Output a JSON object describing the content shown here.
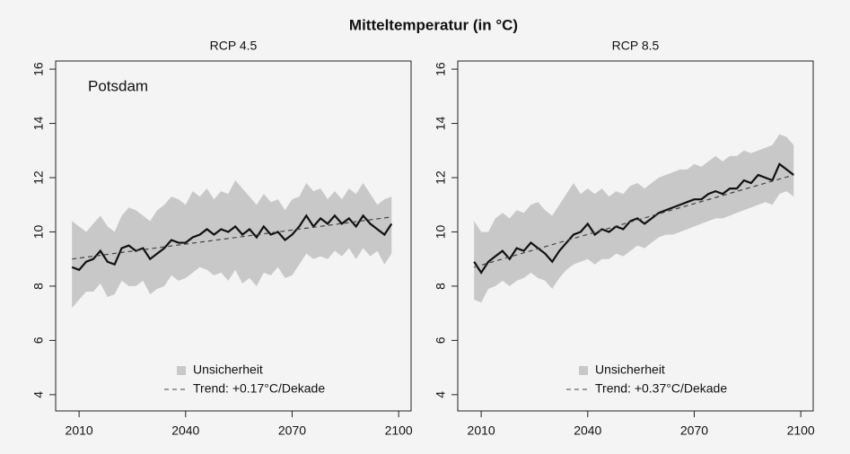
{
  "title": "Mitteltemperatur (in °C)",
  "chart_data": [
    {
      "type": "line",
      "subtitle": "RCP 4.5",
      "annotation": "Potsdam",
      "x": [
        2008,
        2010,
        2012,
        2014,
        2016,
        2018,
        2020,
        2022,
        2024,
        2026,
        2028,
        2030,
        2032,
        2034,
        2036,
        2038,
        2040,
        2042,
        2044,
        2046,
        2048,
        2050,
        2052,
        2054,
        2056,
        2058,
        2060,
        2062,
        2064,
        2066,
        2068,
        2070,
        2072,
        2074,
        2076,
        2078,
        2080,
        2082,
        2084,
        2086,
        2088,
        2090,
        2092,
        2094,
        2096,
        2098
      ],
      "values": [
        8.7,
        8.6,
        8.9,
        9.0,
        9.3,
        8.9,
        8.8,
        9.4,
        9.5,
        9.3,
        9.4,
        9.0,
        9.2,
        9.4,
        9.7,
        9.6,
        9.6,
        9.8,
        9.9,
        10.1,
        9.9,
        10.1,
        10.0,
        10.2,
        9.9,
        10.1,
        9.8,
        10.2,
        9.9,
        10.0,
        9.7,
        9.9,
        10.2,
        10.6,
        10.2,
        10.5,
        10.3,
        10.6,
        10.3,
        10.5,
        10.2,
        10.6,
        10.3,
        10.1,
        9.9,
        10.3
      ],
      "color": "#111111",
      "series": [
        {
          "name": "Unsicherheit",
          "color": "#c8c8c8",
          "upper": [
            10.4,
            10.2,
            10.0,
            10.3,
            10.6,
            10.2,
            10.0,
            10.6,
            10.9,
            10.8,
            10.6,
            10.4,
            10.8,
            11.0,
            11.3,
            11.2,
            11.0,
            11.5,
            11.3,
            11.6,
            11.2,
            11.5,
            11.4,
            11.9,
            11.6,
            11.3,
            11.0,
            11.4,
            11.1,
            11.2,
            10.8,
            11.2,
            11.3,
            11.8,
            11.5,
            11.6,
            11.2,
            11.5,
            11.2,
            11.6,
            11.4,
            11.8,
            11.4,
            11.0,
            11.2,
            11.3
          ],
          "lower": [
            7.2,
            7.5,
            7.8,
            7.8,
            8.1,
            7.6,
            7.7,
            8.2,
            8.0,
            8.0,
            8.2,
            7.7,
            7.9,
            8.0,
            8.4,
            8.2,
            8.3,
            8.5,
            8.7,
            8.6,
            8.4,
            8.5,
            8.2,
            8.6,
            8.1,
            8.3,
            8.0,
            8.5,
            8.4,
            8.7,
            8.3,
            8.4,
            8.8,
            9.2,
            9.0,
            9.1,
            9.0,
            9.3,
            9.1,
            9.4,
            9.0,
            9.4,
            9.1,
            9.3,
            8.8,
            9.2
          ]
        },
        {
          "name": "Trend: +0.17°C/Dekade",
          "color": "#444444",
          "x": [
            2008,
            2098
          ],
          "values": [
            9.0,
            10.55
          ]
        }
      ],
      "xlim": [
        2003.4,
        2103.5
      ],
      "xticks": [
        2010,
        2040,
        2070,
        2100
      ],
      "ylim": [
        3.4,
        16.3
      ],
      "yticks": [
        4,
        6,
        8,
        10,
        12,
        14,
        16
      ],
      "legend": "bottom"
    },
    {
      "type": "line",
      "subtitle": "RCP 8.5",
      "x": [
        2008,
        2010,
        2012,
        2014,
        2016,
        2018,
        2020,
        2022,
        2024,
        2026,
        2028,
        2030,
        2032,
        2034,
        2036,
        2038,
        2040,
        2042,
        2044,
        2046,
        2048,
        2050,
        2052,
        2054,
        2056,
        2058,
        2060,
        2062,
        2064,
        2066,
        2068,
        2070,
        2072,
        2074,
        2076,
        2078,
        2080,
        2082,
        2084,
        2086,
        2088,
        2090,
        2092,
        2094,
        2096,
        2098
      ],
      "values": [
        8.9,
        8.5,
        8.9,
        9.1,
        9.3,
        9.0,
        9.4,
        9.3,
        9.6,
        9.4,
        9.2,
        8.9,
        9.3,
        9.6,
        9.9,
        10.0,
        10.3,
        9.9,
        10.1,
        10.0,
        10.2,
        10.1,
        10.4,
        10.5,
        10.3,
        10.5,
        10.7,
        10.8,
        10.9,
        11.0,
        11.1,
        11.2,
        11.2,
        11.4,
        11.5,
        11.4,
        11.6,
        11.6,
        11.9,
        11.8,
        12.1,
        12.0,
        11.9,
        12.5,
        12.3,
        12.1
      ],
      "color": "#111111",
      "series": [
        {
          "name": "Unsicherheit",
          "color": "#c8c8c8",
          "upper": [
            10.4,
            10.0,
            10.0,
            10.5,
            10.7,
            10.5,
            10.8,
            10.7,
            11.0,
            11.1,
            10.8,
            10.6,
            11.0,
            11.4,
            11.8,
            11.4,
            11.6,
            11.4,
            11.6,
            11.3,
            11.5,
            11.4,
            11.7,
            11.8,
            11.6,
            11.8,
            12.0,
            12.1,
            12.2,
            12.3,
            12.3,
            12.5,
            12.4,
            12.6,
            12.8,
            12.6,
            12.8,
            12.8,
            13.0,
            12.9,
            13.0,
            13.1,
            13.2,
            13.6,
            13.5,
            13.2
          ],
          "lower": [
            7.5,
            7.4,
            7.9,
            8.0,
            8.2,
            8.0,
            8.2,
            8.3,
            8.5,
            8.3,
            8.2,
            7.9,
            8.3,
            8.6,
            8.8,
            8.9,
            9.0,
            8.8,
            9.0,
            9.0,
            9.2,
            9.1,
            9.3,
            9.5,
            9.4,
            9.6,
            9.8,
            9.9,
            9.9,
            10.0,
            10.1,
            10.2,
            10.3,
            10.4,
            10.5,
            10.5,
            10.6,
            10.7,
            10.8,
            10.9,
            11.0,
            11.1,
            11.0,
            11.4,
            11.5,
            11.3
          ]
        },
        {
          "name": "Trend: +0.37°C/Dekade",
          "color": "#444444",
          "x": [
            2008,
            2098
          ],
          "values": [
            8.7,
            12.1
          ]
        }
      ],
      "xlim": [
        2003.4,
        2103.5
      ],
      "xticks": [
        2010,
        2040,
        2070,
        2100
      ],
      "ylim": [
        3.4,
        16.3
      ],
      "yticks": [
        4,
        6,
        8,
        10,
        12,
        14,
        16
      ],
      "legend": "bottom"
    }
  ]
}
